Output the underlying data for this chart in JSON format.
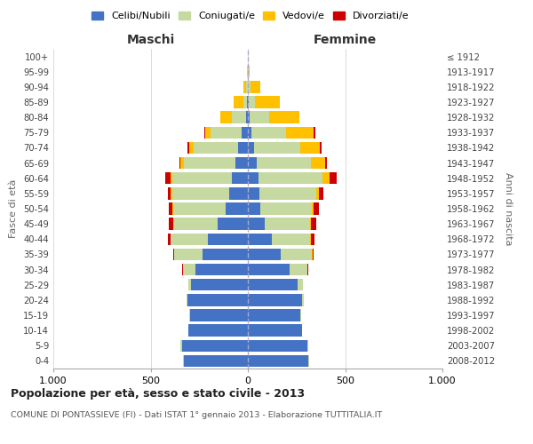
{
  "age_groups_bottom_to_top": [
    "0-4",
    "5-9",
    "10-14",
    "15-19",
    "20-24",
    "25-29",
    "30-34",
    "35-39",
    "40-44",
    "45-49",
    "50-54",
    "55-59",
    "60-64",
    "65-69",
    "70-74",
    "75-79",
    "80-84",
    "85-89",
    "90-94",
    "95-99",
    "100+"
  ],
  "birth_years_bottom_to_top": [
    "2008-2012",
    "2003-2007",
    "1998-2002",
    "1993-1997",
    "1988-1992",
    "1983-1987",
    "1978-1982",
    "1973-1977",
    "1968-1972",
    "1963-1967",
    "1958-1962",
    "1953-1957",
    "1948-1952",
    "1943-1947",
    "1938-1942",
    "1933-1937",
    "1928-1932",
    "1923-1927",
    "1918-1922",
    "1913-1917",
    "≤ 1912"
  ],
  "colors": {
    "celibe": "#4472C4",
    "coniugato": "#c5d9a0",
    "vedovo": "#ffc000",
    "divorziato": "#cc0000"
  },
  "maschi_b2t": {
    "celibe": [
      330,
      340,
      305,
      295,
      310,
      290,
      270,
      235,
      205,
      155,
      115,
      95,
      80,
      65,
      50,
      30,
      10,
      5,
      2,
      1,
      0
    ],
    "coniugato": [
      5,
      5,
      0,
      5,
      5,
      18,
      65,
      145,
      190,
      225,
      270,
      295,
      310,
      265,
      230,
      160,
      70,
      20,
      8,
      2,
      0
    ],
    "vedovo": [
      0,
      0,
      0,
      0,
      0,
      0,
      0,
      0,
      1,
      2,
      3,
      5,
      8,
      15,
      20,
      30,
      60,
      50,
      12,
      3,
      0
    ],
    "divorziato": [
      0,
      0,
      0,
      0,
      0,
      0,
      2,
      5,
      15,
      25,
      20,
      18,
      25,
      8,
      10,
      5,
      2,
      0,
      0,
      0,
      0
    ]
  },
  "femmine_b2t": {
    "nubile": [
      310,
      305,
      280,
      270,
      280,
      255,
      215,
      170,
      125,
      85,
      65,
      60,
      55,
      45,
      30,
      20,
      8,
      5,
      2,
      1,
      0
    ],
    "coniugata": [
      5,
      5,
      0,
      5,
      8,
      30,
      90,
      160,
      195,
      235,
      265,
      290,
      330,
      280,
      240,
      175,
      100,
      30,
      10,
      2,
      0
    ],
    "vedova": [
      0,
      0,
      0,
      0,
      0,
      0,
      2,
      2,
      3,
      5,
      10,
      15,
      35,
      70,
      100,
      145,
      155,
      130,
      50,
      8,
      2
    ],
    "divorziata": [
      0,
      0,
      0,
      0,
      0,
      0,
      2,
      8,
      20,
      28,
      25,
      25,
      35,
      12,
      10,
      5,
      2,
      0,
      0,
      0,
      0
    ]
  },
  "xlim": 1000,
  "title": "Popolazione per età, sesso e stato civile - 2013",
  "subtitle": "COMUNE DI PONTASSIEVE (FI) - Dati ISTAT 1° gennaio 2013 - Elaborazione TUTTITALIA.IT",
  "xlabel_left": "Maschi",
  "xlabel_right": "Femmine",
  "ylabel_left": "Fasce di età",
  "ylabel_right": "Anni di nascita",
  "legend_labels": [
    "Celibi/Nubili",
    "Coniugati/e",
    "Vedovi/e",
    "Divorziati/e"
  ],
  "background_color": "#ffffff"
}
